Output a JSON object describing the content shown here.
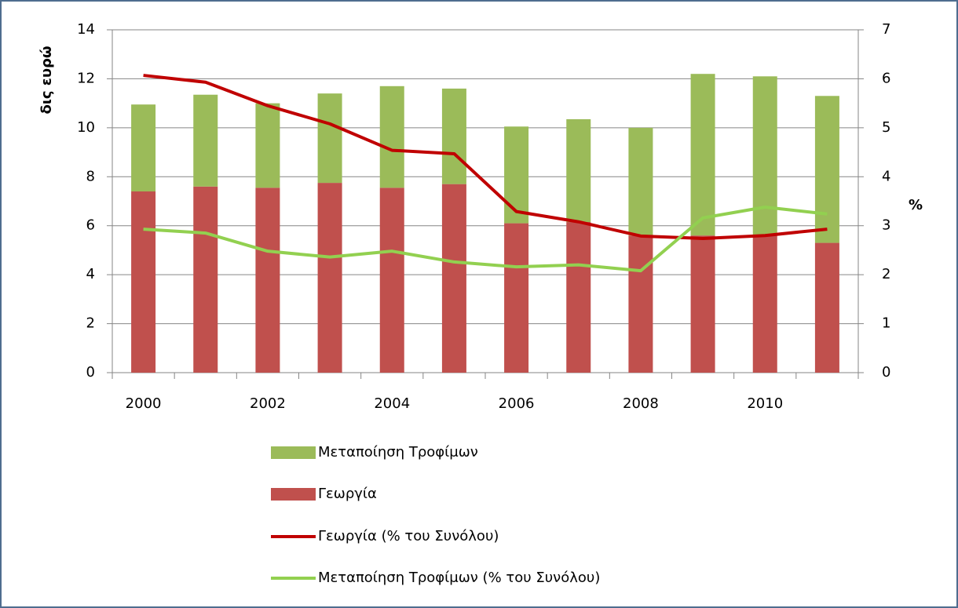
{
  "chart_data": {
    "type": "bar",
    "y_label": "δις ευρώ",
    "y2_label": "%",
    "categories": [
      "2000",
      null,
      "2002",
      null,
      "2004",
      null,
      "2006",
      null,
      "2008",
      null,
      "2010",
      null
    ],
    "series": [
      {
        "name": "Μεταποίηση Τροφίμων",
        "type": "bar",
        "color": "#9bbb59",
        "values": [
          3.55,
          3.75,
          3.45,
          3.65,
          4.15,
          3.9,
          3.95,
          4.2,
          4.4,
          6.6,
          6.5,
          6.0
        ]
      },
      {
        "name": "Γεωργία",
        "type": "bar",
        "color": "#c0504d",
        "values": [
          7.4,
          7.6,
          7.55,
          7.75,
          7.55,
          7.7,
          6.1,
          6.15,
          5.6,
          5.6,
          5.6,
          5.3
        ]
      },
      {
        "name": "Γεωργία (% του Συνόλου)",
        "type": "line",
        "axis": "y2",
        "color": "#c00000",
        "values": [
          6.07,
          5.93,
          5.45,
          5.08,
          4.54,
          4.47,
          3.29,
          3.08,
          2.79,
          2.74,
          2.8,
          2.93
        ]
      },
      {
        "name": "Μεταποίηση Τροφίμων (% του Συνόλου)",
        "type": "line",
        "axis": "y2",
        "color": "#92d050",
        "values": [
          2.93,
          2.85,
          2.48,
          2.36,
          2.48,
          2.26,
          2.16,
          2.2,
          2.08,
          3.16,
          3.38,
          3.24
        ]
      }
    ],
    "ylim": [
      0,
      14
    ],
    "yticks": [
      0,
      2,
      4,
      6,
      8,
      10,
      12,
      14
    ],
    "y2lim": [
      0,
      7
    ],
    "y2ticks": [
      0,
      1,
      2,
      3,
      4,
      5,
      6,
      7
    ],
    "grid": true,
    "legend": "bottom"
  }
}
